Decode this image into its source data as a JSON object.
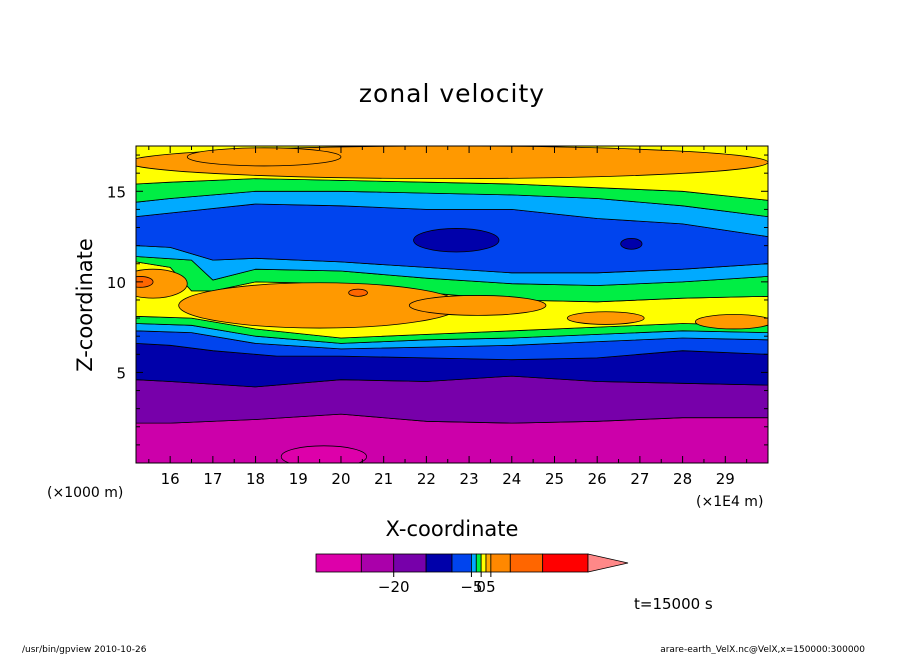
{
  "chart_data": {
    "type": "heatmap",
    "subtype": "filled-contour",
    "title": "zonal velocity",
    "xlabel": "X-coordinate",
    "ylabel": "Z-coordinate",
    "x_scale_note": "(×1E4 m)",
    "y_scale_note": "(×1000 m)",
    "xlim": [
      15.2,
      30.0
    ],
    "ylim": [
      0,
      17.5
    ],
    "x_ticks": [
      16,
      17,
      18,
      19,
      20,
      21,
      22,
      23,
      24,
      25,
      26,
      27,
      28,
      29
    ],
    "x_tick_labels": [
      "16",
      "17",
      "18",
      "19",
      "20",
      "21",
      "22",
      "23",
      "24",
      "25",
      "26",
      "27",
      "28",
      "29"
    ],
    "y_ticks": [
      5,
      10,
      15
    ],
    "y_tick_labels": [
      "5",
      "10",
      "15"
    ],
    "time_label": "t=15000 s",
    "colorbar": {
      "colors": [
        "#dd00aa",
        "#aa00aa",
        "#7700aa",
        "#0000aa",
        "#0044ee",
        "#00aaff",
        "#00ee44",
        "#ffff00",
        "#ffaa00",
        "#ff8800",
        "#ff6600",
        "#ff0000",
        "#ff8888"
      ],
      "widths": [
        1.4,
        1.0,
        1.0,
        0.8,
        0.6,
        0.15,
        0.15,
        0.15,
        0.15,
        0.6,
        1.0,
        1.4,
        1.0
      ],
      "tick_labels": [
        {
          "value": -20,
          "label": "−20"
        },
        {
          "value": -5,
          "label": "−5"
        },
        {
          "value": 0,
          "label": "0"
        },
        {
          "value": 5,
          "label": "5"
        }
      ]
    },
    "bands": [
      {
        "color": "#cc00aa",
        "z": [
          [
            15.2,
            0
          ],
          [
            30,
            0
          ],
          [
            30,
            2.5
          ],
          [
            28,
            2.5
          ],
          [
            26,
            2.3
          ],
          [
            24,
            2.2
          ],
          [
            22,
            2.3
          ],
          [
            20,
            2.7
          ],
          [
            18,
            2.4
          ],
          [
            16,
            2.2
          ],
          [
            15.2,
            2.2
          ]
        ]
      },
      {
        "color": "#7700aa",
        "z": [
          [
            15.2,
            2.2
          ],
          [
            16,
            2.2
          ],
          [
            18,
            2.4
          ],
          [
            20,
            2.7
          ],
          [
            22,
            2.3
          ],
          [
            24,
            2.2
          ],
          [
            26,
            2.3
          ],
          [
            28,
            2.5
          ],
          [
            30,
            2.5
          ],
          [
            30,
            4.3
          ],
          [
            28,
            4.4
          ],
          [
            26,
            4.5
          ],
          [
            24,
            4.8
          ],
          [
            22,
            4.5
          ],
          [
            20,
            4.6
          ],
          [
            18,
            4.2
          ],
          [
            16,
            4.5
          ],
          [
            15.2,
            4.6
          ]
        ]
      },
      {
        "color": "#0000aa",
        "z": [
          [
            15.2,
            4.6
          ],
          [
            16,
            4.5
          ],
          [
            18,
            4.2
          ],
          [
            20,
            4.6
          ],
          [
            22,
            4.5
          ],
          [
            24,
            4.8
          ],
          [
            26,
            4.5
          ],
          [
            28,
            4.4
          ],
          [
            30,
            4.3
          ],
          [
            30,
            6.0
          ],
          [
            28,
            6.2
          ],
          [
            26,
            5.8
          ],
          [
            24,
            5.7
          ],
          [
            22,
            5.8
          ],
          [
            20,
            5.9
          ],
          [
            18.5,
            5.9
          ],
          [
            17,
            6.2
          ],
          [
            16,
            6.5
          ],
          [
            15.2,
            6.6
          ]
        ]
      },
      {
        "color": "#0044ee",
        "z": [
          [
            15.2,
            6.6
          ],
          [
            16,
            6.5
          ],
          [
            17,
            6.2
          ],
          [
            18.5,
            5.9
          ],
          [
            20,
            5.9
          ],
          [
            22,
            5.8
          ],
          [
            24,
            5.7
          ],
          [
            26,
            5.8
          ],
          [
            28,
            6.2
          ],
          [
            30,
            6.0
          ],
          [
            30,
            6.8
          ],
          [
            28,
            6.9
          ],
          [
            26,
            6.7
          ],
          [
            24,
            6.5
          ],
          [
            22,
            6.4
          ],
          [
            20,
            6.3
          ],
          [
            18,
            6.6
          ],
          [
            16.5,
            7.2
          ],
          [
            15.2,
            7.3
          ]
        ]
      },
      {
        "color": "#00aaff",
        "z": [
          [
            15.2,
            7.3
          ],
          [
            16.5,
            7.2
          ],
          [
            18,
            6.6
          ],
          [
            20,
            6.3
          ],
          [
            22,
            6.4
          ],
          [
            24,
            6.5
          ],
          [
            26,
            6.7
          ],
          [
            28,
            6.9
          ],
          [
            30,
            6.8
          ],
          [
            30,
            7.2
          ],
          [
            28,
            7.3
          ],
          [
            26,
            7.1
          ],
          [
            24,
            6.9
          ],
          [
            22,
            6.8
          ],
          [
            20,
            6.6
          ],
          [
            18,
            7.0
          ],
          [
            16.5,
            7.6
          ],
          [
            15.2,
            7.7
          ]
        ]
      },
      {
        "color": "#00ee44",
        "z": [
          [
            15.2,
            7.7
          ],
          [
            16.5,
            7.6
          ],
          [
            18,
            7.0
          ],
          [
            20,
            6.6
          ],
          [
            22,
            6.8
          ],
          [
            24,
            6.9
          ],
          [
            26,
            7.1
          ],
          [
            28,
            7.3
          ],
          [
            30,
            7.2
          ],
          [
            30,
            7.6
          ],
          [
            28,
            7.7
          ],
          [
            26,
            7.5
          ],
          [
            24,
            7.3
          ],
          [
            22,
            7.1
          ],
          [
            20,
            6.9
          ],
          [
            18,
            7.4
          ],
          [
            16.5,
            8.0
          ],
          [
            15.2,
            8.1
          ]
        ]
      },
      {
        "color": "#ffff00",
        "z": [
          [
            15.2,
            8.1
          ],
          [
            16.5,
            8.0
          ],
          [
            18,
            7.4
          ],
          [
            20,
            6.9
          ],
          [
            22,
            7.1
          ],
          [
            24,
            7.3
          ],
          [
            26,
            7.5
          ],
          [
            28,
            7.7
          ],
          [
            30,
            7.6
          ],
          [
            30,
            9.2
          ],
          [
            28,
            9.1
          ],
          [
            26,
            8.9
          ],
          [
            24,
            9.0
          ],
          [
            22,
            9.4
          ],
          [
            20,
            9.9
          ],
          [
            18,
            10.0
          ],
          [
            17,
            9.5
          ],
          [
            16.5,
            9.5
          ],
          [
            16,
            10.8
          ],
          [
            15.2,
            11.1
          ]
        ]
      },
      {
        "color": "#00ee44",
        "z": [
          [
            15.2,
            11.1
          ],
          [
            16,
            10.8
          ],
          [
            16.5,
            9.5
          ],
          [
            17,
            9.5
          ],
          [
            18,
            10.0
          ],
          [
            20,
            9.9
          ],
          [
            22,
            9.4
          ],
          [
            24,
            9.0
          ],
          [
            26,
            8.9
          ],
          [
            28,
            9.1
          ],
          [
            30,
            9.2
          ],
          [
            30,
            10.3
          ],
          [
            28,
            10.0
          ],
          [
            26,
            9.8
          ],
          [
            24,
            9.9
          ],
          [
            22,
            10.2
          ],
          [
            20,
            10.6
          ],
          [
            18,
            10.7
          ],
          [
            17,
            10.1
          ],
          [
            16.5,
            11.2
          ],
          [
            15.2,
            11.4
          ]
        ]
      },
      {
        "color": "#00aaff",
        "z": [
          [
            15.2,
            11.4
          ],
          [
            16.5,
            11.2
          ],
          [
            17,
            10.1
          ],
          [
            18,
            10.7
          ],
          [
            20,
            10.6
          ],
          [
            22,
            10.2
          ],
          [
            24,
            9.9
          ],
          [
            26,
            9.8
          ],
          [
            28,
            10.0
          ],
          [
            30,
            10.3
          ],
          [
            30,
            11.0
          ],
          [
            28,
            10.7
          ],
          [
            26,
            10.5
          ],
          [
            24,
            10.5
          ],
          [
            22,
            10.8
          ],
          [
            20,
            11.1
          ],
          [
            18,
            11.3
          ],
          [
            17,
            11.2
          ],
          [
            16,
            11.9
          ],
          [
            15.2,
            12.0
          ]
        ]
      },
      {
        "color": "#0044ee",
        "z": [
          [
            15.2,
            12.0
          ],
          [
            16,
            11.9
          ],
          [
            17,
            11.2
          ],
          [
            18,
            11.3
          ],
          [
            20,
            11.1
          ],
          [
            22,
            10.8
          ],
          [
            24,
            10.5
          ],
          [
            26,
            10.5
          ],
          [
            28,
            10.7
          ],
          [
            30,
            11.0
          ],
          [
            30,
            12.5
          ],
          [
            28,
            13.2
          ],
          [
            26,
            13.5
          ],
          [
            24,
            14.0
          ],
          [
            22,
            14.0
          ],
          [
            20,
            14.2
          ],
          [
            18,
            14.3
          ],
          [
            16,
            13.8
          ],
          [
            15.2,
            13.6
          ]
        ]
      },
      {
        "color": "#00aaff",
        "z": [
          [
            15.2,
            13.6
          ],
          [
            16,
            13.8
          ],
          [
            18,
            14.3
          ],
          [
            20,
            14.2
          ],
          [
            22,
            14.0
          ],
          [
            24,
            14.0
          ],
          [
            26,
            13.5
          ],
          [
            28,
            13.2
          ],
          [
            30,
            12.5
          ],
          [
            30,
            13.6
          ],
          [
            28,
            14.2
          ],
          [
            26,
            14.6
          ],
          [
            24,
            14.8
          ],
          [
            22,
            14.9
          ],
          [
            20,
            15.0
          ],
          [
            18,
            15.0
          ],
          [
            16,
            14.6
          ],
          [
            15.2,
            14.4
          ]
        ]
      },
      {
        "color": "#00ee44",
        "z": [
          [
            15.2,
            14.4
          ],
          [
            16,
            14.6
          ],
          [
            18,
            15.0
          ],
          [
            20,
            15.0
          ],
          [
            22,
            14.9
          ],
          [
            24,
            14.8
          ],
          [
            26,
            14.6
          ],
          [
            28,
            14.2
          ],
          [
            30,
            13.6
          ],
          [
            30,
            14.5
          ],
          [
            28,
            15.0
          ],
          [
            26,
            15.2
          ],
          [
            24,
            15.4
          ],
          [
            22,
            15.5
          ],
          [
            20,
            15.6
          ],
          [
            18,
            15.7
          ],
          [
            16,
            15.5
          ],
          [
            15.2,
            15.4
          ]
        ]
      },
      {
        "color": "#ffff00",
        "z": [
          [
            15.2,
            15.4
          ],
          [
            16,
            15.5
          ],
          [
            18,
            15.7
          ],
          [
            20,
            15.6
          ],
          [
            22,
            15.5
          ],
          [
            24,
            15.4
          ],
          [
            26,
            15.2
          ],
          [
            28,
            15.0
          ],
          [
            30,
            14.5
          ],
          [
            30,
            17.5
          ],
          [
            15.2,
            17.5
          ]
        ]
      }
    ],
    "blobs": [
      {
        "color": "#ff9900",
        "cx": 19.5,
        "cz": 8.7,
        "rx": 3.3,
        "rz": 1.25
      },
      {
        "color": "#ff9900",
        "cx": 23.2,
        "cz": 8.7,
        "rx": 1.6,
        "rz": 0.55
      },
      {
        "color": "#ff9900",
        "cx": 26.2,
        "cz": 8.0,
        "rx": 0.9,
        "rz": 0.35
      },
      {
        "color": "#ff9900",
        "cx": 29.2,
        "cz": 7.8,
        "rx": 0.9,
        "rz": 0.4
      },
      {
        "color": "#ff9900",
        "cx": 15.6,
        "cz": 9.9,
        "rx": 0.8,
        "rz": 0.8
      },
      {
        "color": "#ff6600",
        "cx": 15.3,
        "cz": 10.0,
        "rx": 0.3,
        "rz": 0.3
      },
      {
        "color": "#ff6600",
        "cx": 20.4,
        "cz": 9.4,
        "rx": 0.22,
        "rz": 0.2
      },
      {
        "color": "#0000aa",
        "cx": 22.7,
        "cz": 12.3,
        "rx": 1.0,
        "rz": 0.65
      },
      {
        "color": "#0000aa",
        "cx": 26.8,
        "cz": 12.1,
        "rx": 0.25,
        "rz": 0.3
      },
      {
        "color": "#ff9900",
        "cx": 22.5,
        "cz": 16.6,
        "rx": 7.5,
        "rz": 0.9
      },
      {
        "color": "#ff9900",
        "cx": 18.2,
        "cz": 16.9,
        "rx": 1.8,
        "rz": 0.5
      },
      {
        "color": "#dd00aa",
        "cx": 19.6,
        "cz": 0.35,
        "rx": 1.0,
        "rz": 0.6
      }
    ]
  },
  "footer": {
    "left": "/usr/bin/gpview   2010-10-26",
    "right": "arare-earth_VelX.nc@VelX,x=150000:300000"
  }
}
